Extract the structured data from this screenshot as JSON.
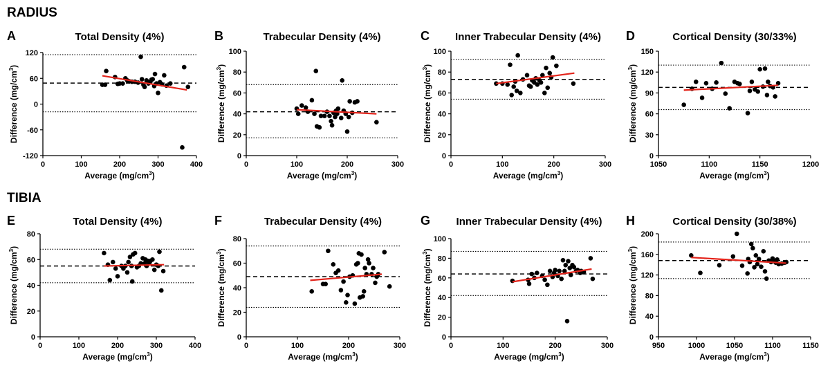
{
  "sections": [
    {
      "id": "radius",
      "label": "RADIUS"
    },
    {
      "id": "tibia",
      "label": "TIBIA"
    }
  ],
  "colors": {
    "points": "#000000",
    "regression": "#e3241b",
    "mean_line": "#000000",
    "limit_lines": "#000000"
  },
  "axis_labels": {
    "x_prefix": "Average (mg/cm",
    "x_sup": "3",
    "x_suffix": ")",
    "y_prefix": "Difference (mg/cm",
    "y_sup": "3",
    "y_suffix": ")"
  },
  "chart_data": [
    {
      "letter": "A",
      "title": "Total Density (4%)",
      "type": "scatter",
      "xlabel": "Average (mg/cm3)",
      "ylabel": "Difference (mg/cm3)",
      "xlim": [
        0,
        400
      ],
      "ylim": [
        -120,
        120
      ],
      "xticks": [
        "0",
        "100",
        "200",
        "300",
        "400"
      ],
      "xtick_values": [
        0,
        100,
        200,
        300,
        400
      ],
      "yticks": [
        "-120",
        "-60",
        "0",
        "60",
        "120"
      ],
      "ytick_values": [
        -120,
        -60,
        0,
        60,
        120
      ],
      "mean": 49,
      "upper_loa": 115,
      "lower_loa": -18,
      "regression": {
        "x": [
          155,
          375
        ],
        "y": [
          66,
          33
        ]
      },
      "points": [
        [
          155,
          45
        ],
        [
          162,
          45
        ],
        [
          165,
          77
        ],
        [
          188,
          63
        ],
        [
          195,
          47
        ],
        [
          200,
          48
        ],
        [
          208,
          48
        ],
        [
          215,
          60
        ],
        [
          220,
          55
        ],
        [
          225,
          53
        ],
        [
          232,
          52
        ],
        [
          240,
          52
        ],
        [
          248,
          50
        ],
        [
          255,
          110
        ],
        [
          258,
          58
        ],
        [
          262,
          45
        ],
        [
          265,
          40
        ],
        [
          270,
          55
        ],
        [
          275,
          48
        ],
        [
          280,
          52
        ],
        [
          283,
          57
        ],
        [
          286,
          58
        ],
        [
          290,
          42
        ],
        [
          292,
          70
        ],
        [
          296,
          48
        ],
        [
          300,
          26
        ],
        [
          305,
          51
        ],
        [
          310,
          46
        ],
        [
          316,
          67
        ],
        [
          322,
          43
        ],
        [
          332,
          48
        ],
        [
          363,
          -101
        ],
        [
          368,
          86
        ],
        [
          378,
          40
        ]
      ]
    },
    {
      "letter": "B",
      "title": "Trabecular Density (4%)",
      "type": "scatter",
      "xlabel": "Average (mg/cm3)",
      "ylabel": "Difference (mg/cm3)",
      "xlim": [
        0,
        300
      ],
      "ylim": [
        0,
        100
      ],
      "xticks": [
        "0",
        "100",
        "200",
        "300"
      ],
      "xtick_values": [
        0,
        100,
        200,
        300
      ],
      "yticks": [
        "0",
        "20",
        "40",
        "60",
        "80",
        "100"
      ],
      "ytick_values": [
        0,
        20,
        40,
        60,
        80,
        100
      ],
      "mean": 42,
      "upper_loa": 68,
      "lower_loa": 17,
      "regression": {
        "x": [
          100,
          258
        ],
        "y": [
          44,
          40
        ]
      },
      "points": [
        [
          100,
          45
        ],
        [
          103,
          40
        ],
        [
          110,
          48
        ],
        [
          118,
          46
        ],
        [
          122,
          42
        ],
        [
          130,
          53
        ],
        [
          135,
          40
        ],
        [
          138,
          81
        ],
        [
          140,
          28
        ],
        [
          145,
          27
        ],
        [
          148,
          38
        ],
        [
          155,
          38
        ],
        [
          160,
          42
        ],
        [
          165,
          38
        ],
        [
          168,
          33
        ],
        [
          170,
          29
        ],
        [
          173,
          41
        ],
        [
          176,
          37
        ],
        [
          178,
          43
        ],
        [
          180,
          40
        ],
        [
          182,
          45
        ],
        [
          188,
          36
        ],
        [
          190,
          72
        ],
        [
          193,
          43
        ],
        [
          197,
          40
        ],
        [
          200,
          23
        ],
        [
          203,
          37
        ],
        [
          205,
          52
        ],
        [
          210,
          41
        ],
        [
          215,
          51
        ],
        [
          220,
          52
        ],
        [
          258,
          32
        ]
      ]
    },
    {
      "letter": "C",
      "title": "Inner Trabecular Density (4%)",
      "type": "scatter",
      "xlabel": "Average (mg/cm3)",
      "ylabel": "Difference (mg/cm3)",
      "xlim": [
        0,
        300
      ],
      "ylim": [
        0,
        100
      ],
      "xticks": [
        "0",
        "100",
        "200",
        "300"
      ],
      "xtick_values": [
        0,
        100,
        200,
        300
      ],
      "yticks": [
        "0",
        "20",
        "40",
        "60",
        "80",
        "100"
      ],
      "ytick_values": [
        0,
        20,
        40,
        60,
        80,
        100
      ],
      "mean": 73,
      "upper_loa": 92,
      "lower_loa": 54,
      "regression": {
        "x": [
          88,
          240
        ],
        "y": [
          69,
          79
        ]
      },
      "points": [
        [
          88,
          69
        ],
        [
          100,
          69
        ],
        [
          110,
          68
        ],
        [
          115,
          87
        ],
        [
          118,
          58
        ],
        [
          122,
          66
        ],
        [
          125,
          71
        ],
        [
          128,
          62
        ],
        [
          130,
          96
        ],
        [
          135,
          60
        ],
        [
          140,
          73
        ],
        [
          148,
          77
        ],
        [
          152,
          67
        ],
        [
          155,
          66
        ],
        [
          158,
          72
        ],
        [
          162,
          70
        ],
        [
          165,
          74
        ],
        [
          168,
          68
        ],
        [
          172,
          72
        ],
        [
          175,
          70
        ],
        [
          178,
          77
        ],
        [
          182,
          60
        ],
        [
          185,
          84
        ],
        [
          188,
          65
        ],
        [
          192,
          79
        ],
        [
          195,
          75
        ],
        [
          198,
          94
        ],
        [
          205,
          86
        ],
        [
          238,
          69
        ]
      ]
    },
    {
      "letter": "D",
      "title": "Cortical Density (30/33%)",
      "type": "scatter",
      "xlabel": "Average (mg/cm3)",
      "ylabel": "Difference (mg/cm3)",
      "xlim": [
        1050,
        1200
      ],
      "ylim": [
        0,
        150
      ],
      "xticks": [
        "1050",
        "1100",
        "1150",
        "1200"
      ],
      "xtick_values": [
        1050,
        1100,
        1150,
        1200
      ],
      "yticks": [
        "0",
        "30",
        "60",
        "90",
        "120",
        "150"
      ],
      "ytick_values": [
        0,
        30,
        60,
        90,
        120,
        150
      ],
      "mean": 98,
      "upper_loa": 130,
      "lower_loa": 66,
      "regression": {
        "x": [
          1075,
          1168
        ],
        "y": [
          94,
          101
        ]
      },
      "points": [
        [
          1075,
          73
        ],
        [
          1083,
          96
        ],
        [
          1087,
          106
        ],
        [
          1093,
          83
        ],
        [
          1097,
          104
        ],
        [
          1103,
          96
        ],
        [
          1107,
          105
        ],
        [
          1112,
          133
        ],
        [
          1116,
          89
        ],
        [
          1120,
          68
        ],
        [
          1125,
          106
        ],
        [
          1128,
          104
        ],
        [
          1130,
          103
        ],
        [
          1138,
          61
        ],
        [
          1140,
          93
        ],
        [
          1142,
          106
        ],
        [
          1145,
          95
        ],
        [
          1148,
          92
        ],
        [
          1150,
          124
        ],
        [
          1153,
          99
        ],
        [
          1155,
          125
        ],
        [
          1157,
          87
        ],
        [
          1158,
          106
        ],
        [
          1160,
          100
        ],
        [
          1163,
          98
        ],
        [
          1165,
          85
        ],
        [
          1168,
          104
        ]
      ]
    },
    {
      "letter": "E",
      "title": "Total Density (4%)",
      "type": "scatter",
      "xlabel": "Average (mg/cm3)",
      "ylabel": "Difference (mg/cm3)",
      "xlim": [
        0,
        400
      ],
      "ylim": [
        0,
        80
      ],
      "xticks": [
        "0",
        "100",
        "200",
        "300",
        "400"
      ],
      "xtick_values": [
        0,
        100,
        200,
        300,
        400
      ],
      "yticks": [
        "0",
        "20",
        "40",
        "60",
        "80"
      ],
      "ytick_values": [
        0,
        20,
        40,
        60,
        80
      ],
      "mean": 55,
      "upper_loa": 68,
      "lower_loa": 42,
      "regression": {
        "x": [
          165,
          320
        ],
        "y": [
          55,
          56
        ]
      },
      "points": [
        [
          165,
          65
        ],
        [
          175,
          56
        ],
        [
          180,
          44
        ],
        [
          188,
          58
        ],
        [
          195,
          53
        ],
        [
          200,
          47
        ],
        [
          210,
          55
        ],
        [
          215,
          53
        ],
        [
          220,
          55
        ],
        [
          225,
          50
        ],
        [
          228,
          58
        ],
        [
          232,
          62
        ],
        [
          236,
          55
        ],
        [
          238,
          43
        ],
        [
          240,
          64
        ],
        [
          245,
          65
        ],
        [
          250,
          54
        ],
        [
          255,
          55
        ],
        [
          260,
          57
        ],
        [
          265,
          61
        ],
        [
          270,
          57
        ],
        [
          272,
          60
        ],
        [
          275,
          55
        ],
        [
          278,
          59
        ],
        [
          282,
          57
        ],
        [
          285,
          59
        ],
        [
          290,
          60
        ],
        [
          295,
          52
        ],
        [
          300,
          56
        ],
        [
          305,
          55
        ],
        [
          308,
          66
        ],
        [
          313,
          36
        ],
        [
          318,
          51
        ]
      ]
    },
    {
      "letter": "F",
      "title": "Trabecular Density (4%)",
      "type": "scatter",
      "xlabel": "Average (mg/cm3)",
      "ylabel": "Difference (mg/cm3)",
      "xlim": [
        0,
        300
      ],
      "ylim": [
        0,
        80
      ],
      "xticks": [
        "0",
        "100",
        "200",
        "300"
      ],
      "xtick_values": [
        0,
        100,
        200,
        300
      ],
      "yticks": [
        "0",
        "20",
        "40",
        "60",
        "80"
      ],
      "ytick_values": [
        0,
        20,
        40,
        60,
        80
      ],
      "mean": 49,
      "upper_loa": 74,
      "lower_loa": 24,
      "regression": {
        "x": [
          125,
          265
        ],
        "y": [
          46,
          51
        ]
      },
      "points": [
        [
          128,
          37
        ],
        [
          150,
          43
        ],
        [
          155,
          43
        ],
        [
          160,
          70
        ],
        [
          170,
          59
        ],
        [
          175,
          52
        ],
        [
          180,
          54
        ],
        [
          185,
          38
        ],
        [
          190,
          45
        ],
        [
          195,
          28
        ],
        [
          198,
          34
        ],
        [
          202,
          49
        ],
        [
          208,
          50
        ],
        [
          212,
          27
        ],
        [
          215,
          59
        ],
        [
          218,
          60
        ],
        [
          220,
          68
        ],
        [
          222,
          32
        ],
        [
          225,
          67
        ],
        [
          228,
          33
        ],
        [
          230,
          37
        ],
        [
          232,
          56
        ],
        [
          235,
          51
        ],
        [
          238,
          63
        ],
        [
          240,
          60
        ],
        [
          245,
          51
        ],
        [
          248,
          56
        ],
        [
          252,
          44
        ],
        [
          255,
          49
        ],
        [
          258,
          51
        ],
        [
          270,
          69
        ],
        [
          280,
          41
        ]
      ]
    },
    {
      "letter": "G",
      "title": "Inner Trabecular Density (4%)",
      "type": "scatter",
      "xlabel": "Average (mg/cm3)",
      "ylabel": "Difference (mg/cm3)",
      "xlim": [
        0,
        300
      ],
      "ylim": [
        0,
        100
      ],
      "xticks": [
        "0",
        "100",
        "200",
        "300"
      ],
      "xtick_values": [
        0,
        100,
        200,
        300
      ],
      "yticks": [
        "0",
        "20",
        "40",
        "60",
        "80",
        "100"
      ],
      "ytick_values": [
        0,
        20,
        40,
        60,
        80,
        100
      ],
      "mean": 64,
      "upper_loa": 87,
      "lower_loa": 42,
      "regression": {
        "x": [
          118,
          270
        ],
        "y": [
          56,
          69
        ]
      },
      "points": [
        [
          118,
          57
        ],
        [
          148,
          58
        ],
        [
          150,
          54
        ],
        [
          155,
          64
        ],
        [
          160,
          60
        ],
        [
          165,
          65
        ],
        [
          175,
          62
        ],
        [
          180,
          58
        ],
        [
          185,
          53
        ],
        [
          190,
          67
        ],
        [
          195,
          61
        ],
        [
          198,
          65
        ],
        [
          200,
          68
        ],
        [
          205,
          62
        ],
        [
          208,
          67
        ],
        [
          212,
          59
        ],
        [
          215,
          78
        ],
        [
          218,
          67
        ],
        [
          220,
          73
        ],
        [
          223,
          16
        ],
        [
          225,
          77
        ],
        [
          228,
          70
        ],
        [
          230,
          63
        ],
        [
          233,
          73
        ],
        [
          236,
          71
        ],
        [
          240,
          67
        ],
        [
          243,
          68
        ],
        [
          248,
          65
        ],
        [
          250,
          67
        ],
        [
          255,
          66
        ],
        [
          268,
          80
        ],
        [
          272,
          59
        ]
      ]
    },
    {
      "letter": "H",
      "title": "Cortical Density (30/38%)",
      "type": "scatter",
      "xlabel": "Average (mg/cm3)",
      "ylabel": "Difference (mg/cm3)",
      "xlim": [
        950,
        1150
      ],
      "ylim": [
        0,
        200
      ],
      "xticks": [
        "950",
        "1000",
        "1050",
        "1100",
        "1150"
      ],
      "xtick_values": [
        950,
        1000,
        1050,
        1100,
        1150
      ],
      "yticks": [
        "0",
        "40",
        "80",
        "120",
        "160",
        "200"
      ],
      "ytick_values": [
        0,
        40,
        80,
        120,
        160,
        200
      ],
      "mean": 148,
      "upper_loa": 184,
      "lower_loa": 113,
      "regression": {
        "x": [
          993,
          1118
        ],
        "y": [
          154,
          143
        ]
      },
      "points": [
        [
          993,
          158
        ],
        [
          1005,
          124
        ],
        [
          1030,
          139
        ],
        [
          1048,
          156
        ],
        [
          1053,
          200
        ],
        [
          1060,
          138
        ],
        [
          1067,
          123
        ],
        [
          1068,
          151
        ],
        [
          1070,
          145
        ],
        [
          1072,
          180
        ],
        [
          1074,
          172
        ],
        [
          1076,
          135
        ],
        [
          1078,
          158
        ],
        [
          1080,
          141
        ],
        [
          1082,
          151
        ],
        [
          1085,
          136
        ],
        [
          1088,
          166
        ],
        [
          1090,
          127
        ],
        [
          1092,
          113
        ],
        [
          1095,
          148
        ],
        [
          1098,
          145
        ],
        [
          1100,
          152
        ],
        [
          1102,
          148
        ],
        [
          1104,
          144
        ],
        [
          1106,
          150
        ],
        [
          1108,
          141
        ],
        [
          1112,
          142
        ],
        [
          1116,
          144
        ],
        [
          1118,
          145
        ]
      ]
    }
  ]
}
